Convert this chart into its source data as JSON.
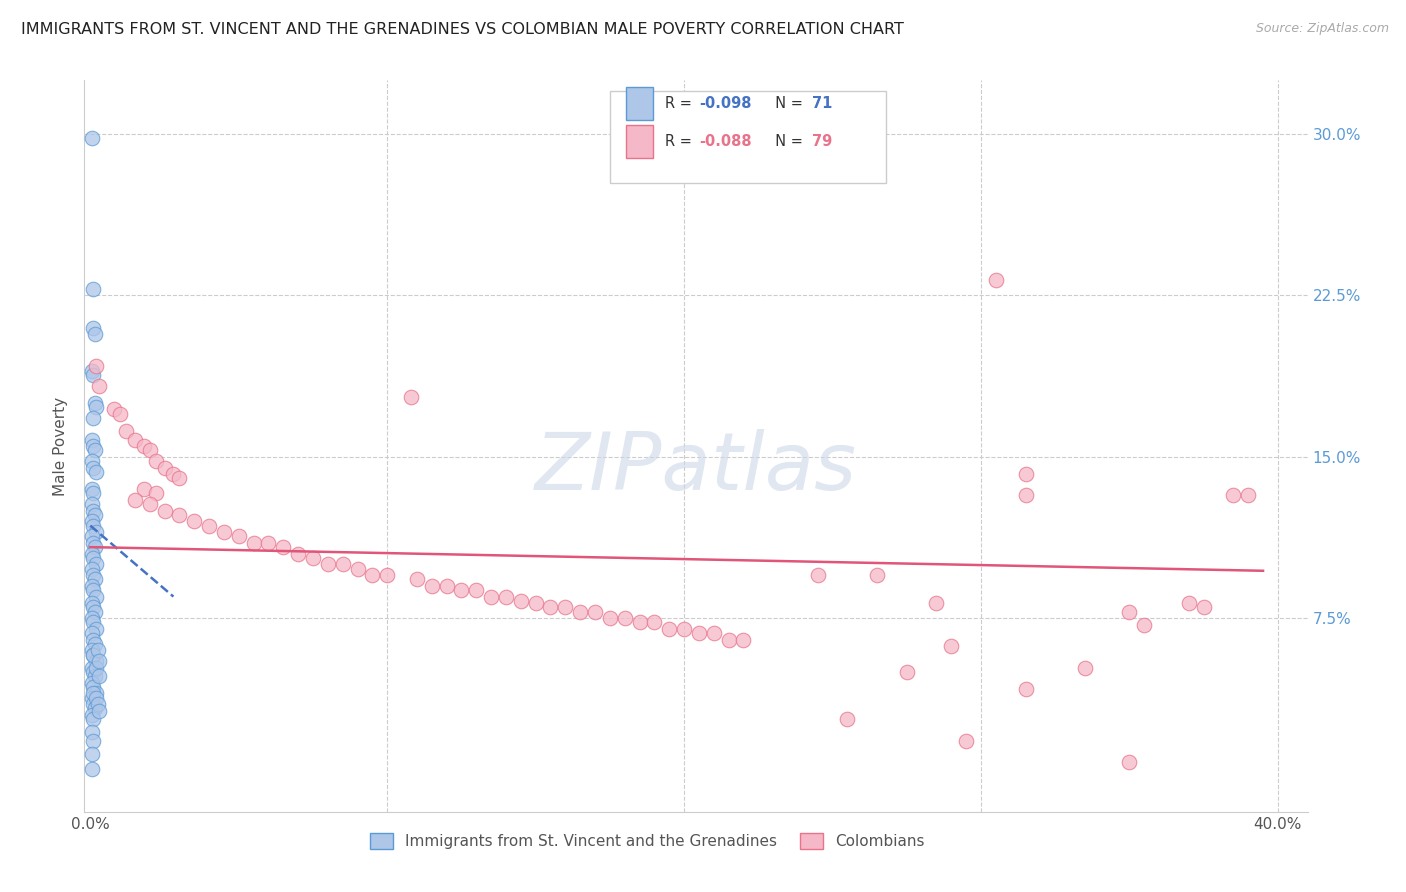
{
  "title": "IMMIGRANTS FROM ST. VINCENT AND THE GRENADINES VS COLOMBIAN MALE POVERTY CORRELATION CHART",
  "source": "Source: ZipAtlas.com",
  "ylabel": "Male Poverty",
  "yticks": [
    "30.0%",
    "22.5%",
    "15.0%",
    "7.5%"
  ],
  "ytick_vals": [
    0.3,
    0.225,
    0.15,
    0.075
  ],
  "xlim": [
    -0.002,
    0.41
  ],
  "ylim": [
    -0.015,
    0.325
  ],
  "blue_color": "#aec6e8",
  "pink_color": "#f5b8c8",
  "blue_edge_color": "#5b9bd5",
  "pink_edge_color": "#e8738a",
  "blue_line_color": "#4472c4",
  "pink_line_color": "#e05578",
  "watermark_color": "#cdd8e8",
  "blue_scatter": [
    [
      0.0005,
      0.298
    ],
    [
      0.0008,
      0.228
    ],
    [
      0.001,
      0.21
    ],
    [
      0.0015,
      0.207
    ],
    [
      0.0005,
      0.19
    ],
    [
      0.001,
      0.188
    ],
    [
      0.0015,
      0.175
    ],
    [
      0.002,
      0.173
    ],
    [
      0.0008,
      0.168
    ],
    [
      0.0005,
      0.158
    ],
    [
      0.001,
      0.155
    ],
    [
      0.0015,
      0.153
    ],
    [
      0.0005,
      0.148
    ],
    [
      0.001,
      0.145
    ],
    [
      0.002,
      0.143
    ],
    [
      0.0005,
      0.135
    ],
    [
      0.001,
      0.133
    ],
    [
      0.0005,
      0.128
    ],
    [
      0.001,
      0.125
    ],
    [
      0.0015,
      0.123
    ],
    [
      0.0005,
      0.12
    ],
    [
      0.001,
      0.118
    ],
    [
      0.002,
      0.115
    ],
    [
      0.0005,
      0.113
    ],
    [
      0.001,
      0.11
    ],
    [
      0.0015,
      0.108
    ],
    [
      0.0005,
      0.105
    ],
    [
      0.001,
      0.103
    ],
    [
      0.002,
      0.1
    ],
    [
      0.0005,
      0.098
    ],
    [
      0.001,
      0.095
    ],
    [
      0.0015,
      0.093
    ],
    [
      0.0005,
      0.09
    ],
    [
      0.001,
      0.088
    ],
    [
      0.002,
      0.085
    ],
    [
      0.0005,
      0.082
    ],
    [
      0.001,
      0.08
    ],
    [
      0.0015,
      0.078
    ],
    [
      0.0005,
      0.075
    ],
    [
      0.001,
      0.073
    ],
    [
      0.002,
      0.07
    ],
    [
      0.0005,
      0.068
    ],
    [
      0.001,
      0.065
    ],
    [
      0.0015,
      0.063
    ],
    [
      0.0005,
      0.06
    ],
    [
      0.001,
      0.058
    ],
    [
      0.002,
      0.055
    ],
    [
      0.0005,
      0.052
    ],
    [
      0.001,
      0.05
    ],
    [
      0.0015,
      0.048
    ],
    [
      0.0005,
      0.045
    ],
    [
      0.001,
      0.043
    ],
    [
      0.002,
      0.04
    ],
    [
      0.0005,
      0.038
    ],
    [
      0.001,
      0.035
    ],
    [
      0.0015,
      0.033
    ],
    [
      0.0005,
      0.03
    ],
    [
      0.001,
      0.028
    ],
    [
      0.0005,
      0.022
    ],
    [
      0.001,
      0.018
    ],
    [
      0.0005,
      0.012
    ],
    [
      0.0005,
      0.005
    ],
    [
      0.0008,
      0.058
    ],
    [
      0.0018,
      0.052
    ],
    [
      0.001,
      0.04
    ],
    [
      0.002,
      0.038
    ],
    [
      0.0025,
      0.06
    ],
    [
      0.003,
      0.055
    ],
    [
      0.0025,
      0.035
    ],
    [
      0.003,
      0.032
    ],
    [
      0.003,
      0.048
    ]
  ],
  "pink_scatter": [
    [
      0.002,
      0.192
    ],
    [
      0.003,
      0.183
    ],
    [
      0.008,
      0.172
    ],
    [
      0.01,
      0.17
    ],
    [
      0.012,
      0.162
    ],
    [
      0.015,
      0.158
    ],
    [
      0.018,
      0.155
    ],
    [
      0.02,
      0.153
    ],
    [
      0.022,
      0.148
    ],
    [
      0.025,
      0.145
    ],
    [
      0.028,
      0.142
    ],
    [
      0.03,
      0.14
    ],
    [
      0.018,
      0.135
    ],
    [
      0.022,
      0.133
    ],
    [
      0.015,
      0.13
    ],
    [
      0.02,
      0.128
    ],
    [
      0.025,
      0.125
    ],
    [
      0.03,
      0.123
    ],
    [
      0.035,
      0.12
    ],
    [
      0.04,
      0.118
    ],
    [
      0.045,
      0.115
    ],
    [
      0.05,
      0.113
    ],
    [
      0.055,
      0.11
    ],
    [
      0.06,
      0.11
    ],
    [
      0.065,
      0.108
    ],
    [
      0.07,
      0.105
    ],
    [
      0.075,
      0.103
    ],
    [
      0.08,
      0.1
    ],
    [
      0.085,
      0.1
    ],
    [
      0.09,
      0.098
    ],
    [
      0.095,
      0.095
    ],
    [
      0.1,
      0.095
    ],
    [
      0.11,
      0.093
    ],
    [
      0.115,
      0.09
    ],
    [
      0.12,
      0.09
    ],
    [
      0.125,
      0.088
    ],
    [
      0.13,
      0.088
    ],
    [
      0.135,
      0.085
    ],
    [
      0.14,
      0.085
    ],
    [
      0.145,
      0.083
    ],
    [
      0.15,
      0.082
    ],
    [
      0.155,
      0.08
    ],
    [
      0.16,
      0.08
    ],
    [
      0.165,
      0.078
    ],
    [
      0.17,
      0.078
    ],
    [
      0.175,
      0.075
    ],
    [
      0.18,
      0.075
    ],
    [
      0.185,
      0.073
    ],
    [
      0.19,
      0.073
    ],
    [
      0.195,
      0.07
    ],
    [
      0.2,
      0.07
    ],
    [
      0.205,
      0.068
    ],
    [
      0.21,
      0.068
    ],
    [
      0.215,
      0.065
    ],
    [
      0.22,
      0.065
    ],
    [
      0.108,
      0.178
    ],
    [
      0.305,
      0.232
    ],
    [
      0.315,
      0.142
    ],
    [
      0.245,
      0.095
    ],
    [
      0.265,
      0.095
    ],
    [
      0.285,
      0.082
    ],
    [
      0.315,
      0.132
    ],
    [
      0.35,
      0.078
    ],
    [
      0.37,
      0.082
    ],
    [
      0.385,
      0.132
    ],
    [
      0.29,
      0.062
    ],
    [
      0.335,
      0.052
    ],
    [
      0.355,
      0.072
    ],
    [
      0.375,
      0.08
    ],
    [
      0.275,
      0.05
    ],
    [
      0.315,
      0.042
    ],
    [
      0.255,
      0.028
    ],
    [
      0.295,
      0.018
    ],
    [
      0.35,
      0.008
    ],
    [
      0.39,
      0.132
    ]
  ],
  "blue_line": [
    [
      0.0,
      0.118
    ],
    [
      0.028,
      0.085
    ]
  ],
  "pink_line": [
    [
      0.0,
      0.108
    ],
    [
      0.395,
      0.097
    ]
  ]
}
